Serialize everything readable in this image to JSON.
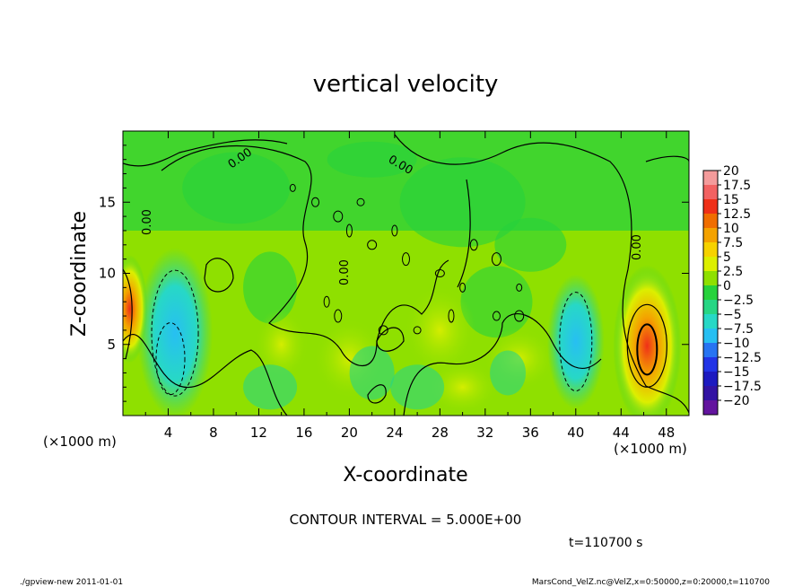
{
  "chart_data": {
    "type": "heatmap",
    "title": "vertical velocity",
    "xlabel": "X-coordinate",
    "ylabel": "Z-coordinate",
    "x_unit_left": "(×1000 m)",
    "x_unit_right": "(×1000 m)",
    "xlim": [
      0,
      50
    ],
    "ylim": [
      0,
      20
    ],
    "x_ticks": [
      4,
      8,
      12,
      16,
      20,
      24,
      28,
      32,
      36,
      40,
      44,
      48
    ],
    "y_ticks": [
      5,
      10,
      15
    ],
    "colorbar": {
      "labels": [
        "20",
        "17.5",
        "15",
        "12.5",
        "10",
        "7.5",
        "5",
        "2.5",
        "0",
        "−2.5",
        "−5",
        "−7.5",
        "−10",
        "−12.5",
        "−15",
        "−17.5",
        "−20"
      ],
      "colors": [
        "#f49b9b",
        "#f26262",
        "#ef3018",
        "#f06d00",
        "#f4a200",
        "#f6d200",
        "#dcef00",
        "#8fe000",
        "#27d23c",
        "#27d684",
        "#27d8c6",
        "#27bff2",
        "#2774f2",
        "#2234e6",
        "#1d1ac0",
        "#3213a3",
        "#63149e"
      ]
    },
    "zero_contour_label": "0.00",
    "contour_interval_text": "CONTOUR INTERVAL = 5.000E+00",
    "time_text": "t=110700 s",
    "footer_left": "./gpview-new 2011-01-01",
    "footer_right": "MarsCond_VelZ.nc@VelZ,x=0:50000,z=0:20000,t=110700",
    "features": [
      {
        "kind": "updraft",
        "x": 46.3,
        "z": 4.9,
        "peak": 12.5
      },
      {
        "kind": "downdraft",
        "x": 4.6,
        "z": 5.8,
        "peak": -7.5
      },
      {
        "kind": "downdraft",
        "x": 40.0,
        "z": 5.2,
        "peak": -6.0
      },
      {
        "kind": "updraft",
        "x": 0.6,
        "z": 7.5,
        "peak": 6.0
      }
    ]
  }
}
